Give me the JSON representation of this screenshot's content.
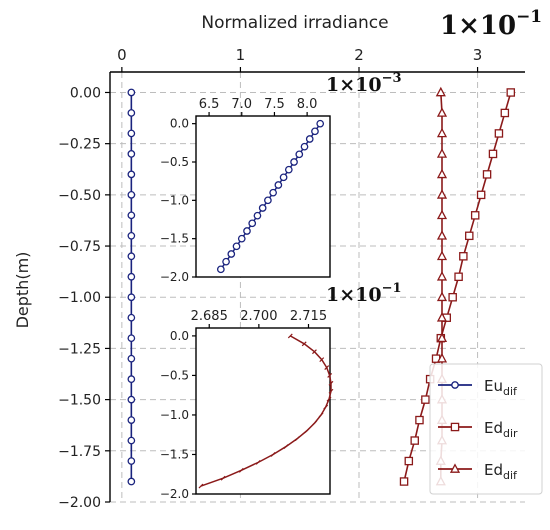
{
  "chart_data": [
    {
      "type": "line",
      "title": "",
      "xlabel": "Normalized irradiance",
      "ylabel": "Depth(m)",
      "x_scale_label": "1×10",
      "x_scale_exp": "−1",
      "xaxis_position": "top",
      "xlim": [
        -0.1,
        3.4
      ],
      "ylim": [
        -2.0,
        0.1
      ],
      "xticks": [
        0,
        1,
        2,
        3
      ],
      "xtick_labels": [
        "0",
        "1",
        "2",
        "3"
      ],
      "yticks": [
        0.0,
        -0.25,
        -0.5,
        -0.75,
        -1.0,
        -1.25,
        -1.5,
        -1.75,
        -2.0
      ],
      "ytick_labels": [
        "0.00",
        "−0.25",
        "−0.50",
        "−0.75",
        "−1.00",
        "−1.25",
        "−1.50",
        "−1.75",
        "−2.00"
      ],
      "grid": true,
      "legend_position": "bottom-right",
      "depth": [
        0.0,
        -0.1,
        -0.2,
        -0.3,
        -0.4,
        -0.5,
        -0.6,
        -0.7,
        -0.8,
        -0.9,
        -1.0,
        -1.1,
        -1.2,
        -1.3,
        -1.4,
        -1.5,
        -1.6,
        -1.7,
        -1.8,
        -1.9
      ],
      "series": [
        {
          "name": "Eu",
          "sub": "dif",
          "color": "#1a237e",
          "marker": "circle",
          "x": [
            0.08,
            0.08,
            0.08,
            0.08,
            0.08,
            0.08,
            0.08,
            0.08,
            0.08,
            0.08,
            0.08,
            0.08,
            0.08,
            0.08,
            0.08,
            0.08,
            0.08,
            0.08,
            0.08,
            0.08
          ]
        },
        {
          "name": "Ed",
          "sub": "dir",
          "color": "#8b1a1a",
          "marker": "square",
          "x": [
            3.28,
            3.23,
            3.18,
            3.13,
            3.08,
            3.03,
            2.98,
            2.93,
            2.88,
            2.84,
            2.79,
            2.74,
            2.69,
            2.65,
            2.6,
            2.56,
            2.51,
            2.47,
            2.42,
            2.38
          ]
        },
        {
          "name": "Ed",
          "sub": "dif",
          "color": "#8b1a1a",
          "marker": "triangle",
          "x": [
            2.69,
            2.7,
            2.7,
            2.7,
            2.7,
            2.7,
            2.7,
            2.7,
            2.7,
            2.7,
            2.7,
            2.7,
            2.7,
            2.7,
            2.7,
            2.7,
            2.7,
            2.7,
            2.69,
            2.69
          ]
        }
      ]
    },
    {
      "type": "line",
      "title": "",
      "xlabel": "",
      "ylabel": "",
      "x_scale_label": "1×10",
      "x_scale_exp": "−3",
      "xaxis_position": "top",
      "xlim": [
        6.3,
        8.35
      ],
      "ylim": [
        -2.0,
        0.1
      ],
      "xticks": [
        6.5,
        7.0,
        7.5,
        8.0
      ],
      "xtick_labels": [
        "6.5",
        "7.0",
        "7.5",
        "8.0"
      ],
      "yticks": [
        0.0,
        -0.5,
        -1.0,
        -1.5,
        -2.0
      ],
      "ytick_labels": [
        "0.0",
        "−0.5",
        "−1.0",
        "−1.5",
        "−2.0"
      ],
      "series": [
        {
          "name": "",
          "color": "#1a237e",
          "marker": "circle",
          "y": [
            0.0,
            -0.1,
            -0.2,
            -0.3,
            -0.4,
            -0.5,
            -0.6,
            -0.7,
            -0.8,
            -0.9,
            -1.0,
            -1.1,
            -1.2,
            -1.3,
            -1.4,
            -1.5,
            -1.6,
            -1.7,
            -1.8,
            -1.9
          ],
          "x": [
            8.2,
            8.12,
            8.04,
            7.96,
            7.88,
            7.8,
            7.72,
            7.64,
            7.56,
            7.48,
            7.4,
            7.32,
            7.24,
            7.16,
            7.08,
            7.0,
            6.92,
            6.84,
            6.76,
            6.68
          ]
        }
      ]
    },
    {
      "type": "line",
      "title": "",
      "xlabel": "",
      "ylabel": "",
      "x_scale_label": "1×10",
      "x_scale_exp": "−1",
      "xaxis_position": "top",
      "xlim": [
        2.681,
        2.7215
      ],
      "ylim": [
        -2.0,
        0.1
      ],
      "xticks": [
        2.685,
        2.7,
        2.715
      ],
      "xtick_labels": [
        "2.685",
        "2.700",
        "2.715"
      ],
      "yticks": [
        0.0,
        -0.5,
        -1.0,
        -1.5,
        -2.0
      ],
      "ytick_labels": [
        "0.0",
        "−0.5",
        "−1.0",
        "−1.5",
        "−2.0"
      ],
      "series": [
        {
          "name": "",
          "color": "#8b1a1a",
          "marker": "tick",
          "y": [
            0.0,
            -0.1,
            -0.2,
            -0.3,
            -0.4,
            -0.5,
            -0.6,
            -0.7,
            -0.8,
            -0.9,
            -1.0,
            -1.1,
            -1.2,
            -1.3,
            -1.4,
            -1.5,
            -1.6,
            -1.7,
            -1.8,
            -1.9
          ],
          "x": [
            2.7095,
            2.7137,
            2.7168,
            2.719,
            2.7205,
            2.7214,
            2.7218,
            2.7218,
            2.7212,
            2.7202,
            2.7188,
            2.7169,
            2.7145,
            2.7116,
            2.7082,
            2.7043,
            2.6998,
            2.6947,
            2.6892,
            2.6825
          ]
        }
      ]
    }
  ]
}
